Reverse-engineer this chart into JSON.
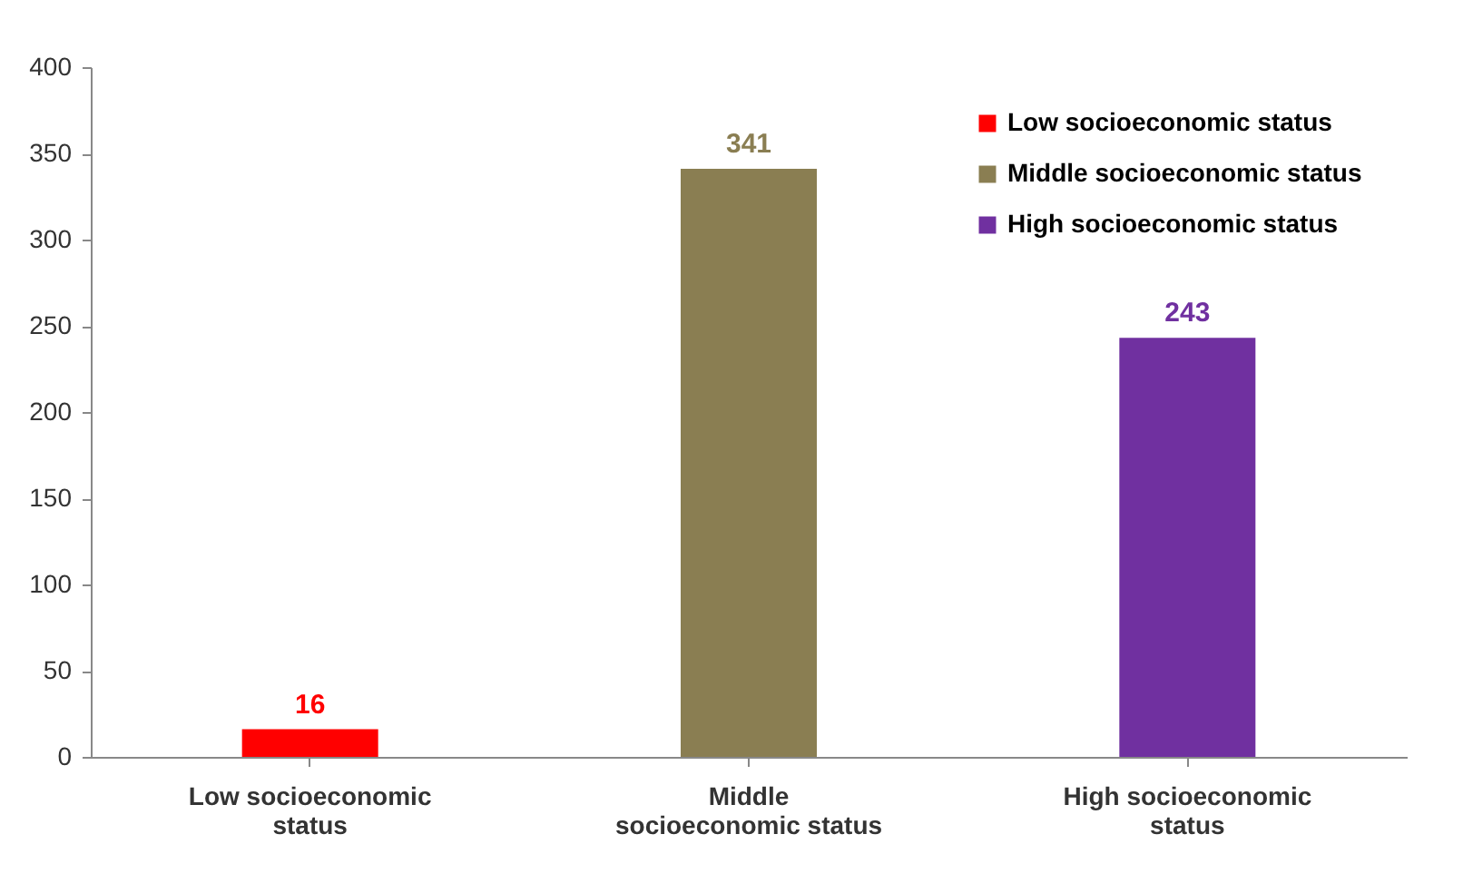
{
  "chart_data": {
    "type": "bar",
    "categories": [
      "Low socioeconomic status",
      "Middle socioeconomic status",
      "High socioeconomic status"
    ],
    "series": [
      {
        "name": "Low socioeconomic status",
        "color": "#ff0000",
        "values": [
          16,
          null,
          null
        ]
      },
      {
        "name": "Middle socioeconomic status",
        "color": "#8a7e52",
        "values": [
          null,
          341,
          null
        ]
      },
      {
        "name": "High socioeconomic status",
        "color": "#7030a0",
        "values": [
          null,
          null,
          243
        ]
      }
    ],
    "ylim": [
      0,
      400
    ],
    "yticks": [
      0,
      50,
      100,
      150,
      200,
      250,
      300,
      350,
      400
    ],
    "data_labels": true,
    "legend": "top right",
    "grid": false
  }
}
